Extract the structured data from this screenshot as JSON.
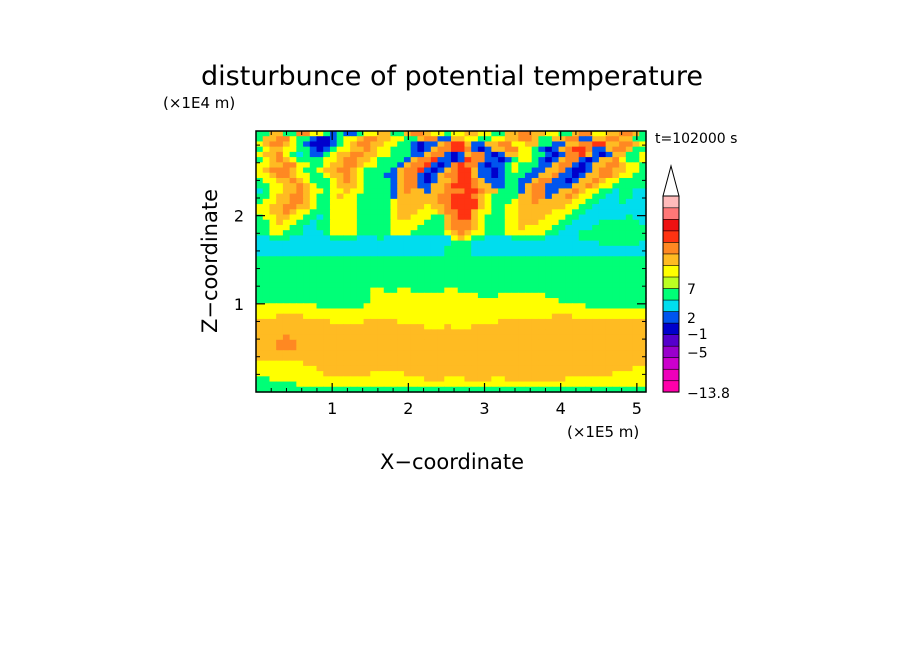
{
  "chart_data": {
    "type": "heatmap",
    "title": "disturbunce of potential temperature",
    "time_label": "t=102000 s",
    "xlabel": "X−coordinate",
    "ylabel": "Z−coordinate",
    "x_scale_label": "(×1E5 m)",
    "y_scale_label": "(×1E4 m)",
    "xlim": [
      0.0,
      5.12
    ],
    "ylim": [
      0.0,
      2.96
    ],
    "x_ticks": [
      1,
      2,
      3,
      4,
      5
    ],
    "y_ticks": [
      1,
      2
    ],
    "x_tick_labels": [
      "1",
      "2",
      "3",
      "4",
      "5"
    ],
    "y_tick_labels": [
      "1",
      "2"
    ],
    "colorbar": {
      "min": -13.8,
      "colors": [
        "#ff00aa",
        "#ee00bb",
        "#cc00cc",
        "#9900cc",
        "#5500cc",
        "#0000cc",
        "#0055ee",
        "#00ddee",
        "#00ff77",
        "#bbff22",
        "#ffff00",
        "#ffbb22",
        "#ff8822",
        "#ff3311",
        "#ee1111",
        "#ff7777",
        "#ffbbbb"
      ],
      "tick_labels": [
        "7",
        "2",
        "−1",
        "−5",
        "−13.8"
      ],
      "tick_values": [
        7,
        2,
        -1,
        -5,
        -13.8
      ],
      "extend": "max"
    },
    "rows_top_to_bottom": [
      "GGAAGGOOYYGBGBBGYYAAGGAOOAYYGYYAAYYGGAAOOAAYYGGAOOYYAAOOAG",
      "GAAOOYGGBNNBGYYAOOAAYYGGAOOBBAAYYGGYYAAOOAGGAAOOBBAAOOAAGG",
      "YAOOAYGBNNNBGYAOOAAYYGGBNBBAORRABBAAOOYYAAGGBBAAOORRAAOOAY",
      "GYAAYYGGBNBGYYAAOAYYGGGBNBAOORROBNBAAOOYYGBNBAORROBBAOOAGG",
      "YAAOYGCGBBGYAAOOAAYYGGGBBAOOBNBAOOBNBAAYYGGBNBOORABNBAAGGY",
      "GYAOAYGGGGYYAOOAAYGGGGBAOORBBNBROOBBNBGYYGBNBAOOBNBAAOYGGY",
      "YYAAOOYYGGYAAOOAYYGGGBAOORBNBOROOBNBBGYGGGBBAOOBNBAAOOAYYG",
      "YAOOOAYGGYAAOOAYGGGGBAOORBNBAORRABBNBGYGGBBAAOBNNBAOOAAYYG",
      "YYAOOAYYGGYAAOAYGGGBBAOOBNBAOORRABBNBGGGBBAAOBBNBAAOOAYYGG",
      "GYYAAOAYGGGYAOAYGGGGBAOOBNBAAORROABBBGGBBAOOBBNBAAOAYYGGGG",
      "GGYYAAOAYGGYAAAYGGGGBAOOBBAAORRROAABBGGBAOOBBBBAAOAYYGGGGG",
      "CGYYAAOAYYGYYAYYGGGGBAOAABAAOOORROAAGGGBAOOBBAAOAYYGGCGGCC",
      "GGYAAOOAYGGYAYYGGGGGBAAAAAAOORRROAYGGGGAAOOBAAOAYYGGCCGGCC",
      "GYYAAOOAYGGYYYYGGGGGYAAAAAAOORRRRAYGGGYAAOAAAAAYYGGCCCGCCC",
      "YYAAOOAAYGGYYYYGGGGGYAAAAYAAORRRRAYGGYYAAAAAAAYYGGCCCCCCCC",
      "YYAAOAYYGGGYYYYGGGGGYAAAYYYAOORRAYYGGYYAAAAAYYYGGCCCCCCCCC",
      "GYYAAYYGGCGYYYYGGGGGYAAYYYGGAORRAYGGGYYAAAAYYYGGCCCCCCCGCC",
      "GGYAYYGGCGGYYYYGGGGGYYYYYGGGAOOOAYGGGYYAAAYYYGGCCCCGGGGGGC",
      "GGYYYGGCCGGYYYYGGGGGYYYYGGGGAOOOAYGGGYYAYYYYGGCCCCGGGGGGGG",
      "GGYYGGGCCCGYYYYGGGGGYYYGGGGGYAOAYYGGGYYYYYYGGCCCGGGGGGGGGG",
      "CCGGGCCCCCCGGGGCCCGCCCCCCCCCCYAYGGCCCCGGGGGCCCCCGGGGGGGGGG",
      "CCCCCCCCCCCCCCCCCCCCCCCCCCCCCGGGCCCCCCCCCCCCCCCCCCCGGGGGGC",
      "CCCCCCCCCCCCCCCCCCCCCCCCCCCCGGGGCCCCCCCCCCCCCCCCCCCCCCCCCC",
      "CCCCCCCCCCCCCCCCCCCCCCCCCCCCGGGGCCCCCCCCCCCCCCCCCCCCCCCCCC",
      "GGGGGGGGGGGGGGGGGGGGGGGGGGGGGGGGGGGGGGGGGGGGGGGGGGGGGGGGGG",
      "GGGGGGGGGGGGGGGGGGGGGGGGGGGGGGGGGGGGGGGGGGGGGGGGGGGGGGGGGG",
      "GGGGGGGGGGGGGGGGGGGGGGGGGGGGGGGGGGGGGGGGGGGGGGGGGGGGGGGGGG",
      "GGGGGGGGGGGGGGGGGGGGGGGGGGGGGGGGGGGGGGGGGGGGGGGGGGGGGGGGGG",
      "GGGGGGGGGGGGGGGGGGGGGGGGGGGGGGGGGGGGGGGGGGGGGGGGGGGGGGGGGG",
      "GGGGGGGGGGGGGGGGGGGGGGGGGGGGGGGGGGGGGGGGGGGGGGGGGGGGGGGGGG",
      "GGGGGGGGGGGGGGGGGYYGGYYGGGGGYYGGGGGGGGGGGGGGGGGGGGGGGGGGGG",
      "GGGGGGGGGGGGGGGGGYYYYYYYYYYYYYYYYGGGYYYYYYYGGGGGGGGGGGGGGG",
      "GGGGGGGGGGGGGGGGGYYYYYYYYYYYYYYYYYYYYYYYYYYYYGGGGGGGGGGGGG",
      "YYYYYYYYYGGGGGGGYYYYYYYYYYYYYYYYYYYYYYYYYYYYYYYYYGGGGGGGGG",
      "YYYYYYYYYYYYYYYYYYYYYYYYYYYYYYYYYYYYYYYYYYYYYYYYYYYYYYYYYY",
      "YYYAAAAYYYYYYYYYYYYYYYYYYYYYYYYYYYYYYYYYYYYYAAAYYYYYYYYYYY",
      "AAAAAAAAAAAYYYYYAAAAAYYYYYYYYYYYYYYYAAAAAAAAAAAAAAAAAAAAAA",
      "AAAAAAAAAAAAAAAAAAAAAAAAAYYYAYYYAAAAAAAAAAAAAAAAAAAAAAAAAA",
      "AAAAAAAAAAAAAAAAAAAAAAAAAAAAAAAAAAAAAAAAAAAAAAAAAAAAAAAAAA",
      "AAAAOAAAAAAAAAAAAAAAAAAAAAAAAAAAAAAAAAAAAAAAAAAAAAAAAAAAAA",
      "AAAOOOAAAAAAAAAAAAAAAAAAAAAAAAAAAAAAAAAAAAAAAAAAAAAAAAAAAA",
      "AAAOOOAAAAAAAAAAAAAAAAAAAAAAAAAAAAAAAAAAAAAAAAAAAAAAAAAAAA",
      "AAAAAAAAAAAAAAAAAAAAAAAAAAAAAAAAAAAAAAAAAAAAAAAAAAAAAAAAAA",
      "AAAAAAAAAAAAAAAAAAAAAAAAAAAAAAAAAAAAAAAAAAAAAAAAAAAAAAAAAA",
      "YYYYYYYAAAAAAAAAAAAAAAAAAAAAAAAAAAAAAAAAAAAAAAAAAAAAAAAAAA",
      "YYYYYYYYYAAAAAAAAAAAAAAAAAAAAAAAAAAAAAAAAAAAAAAAAAAAAAAAYY",
      "YYYYYYYYYYAAAAAAAYYYYYAAAAAAAAAAAAAAAAAAAAAAAAAAAAAAAYYYYY",
      "GGYYYYYYYYYYYYYYYYYYYYYYYAAAYYYAAAAYYAAAAAAAAAYYYYYYYYYYYY",
      "GGGGGGYYYYYYYYYYYYYYYYYYYYYYYYYYYYYYYYYYYYYYYYYYYYYYYYYYYY",
      "GGGGGGGGGGGGGGGGGGGGGGGGGGGGGGGGGGGGGGGGGGGGGGGGGGGGGGGGGG"
    ],
    "cell_legend": {
      "N": "#0000cc",
      "B": "#0055ee",
      "C": "#00ddee",
      "G": "#00ff77",
      "Y": "#ffff00",
      "A": "#ffbb22",
      "O": "#ff8822",
      "R": "#ff3311"
    }
  }
}
